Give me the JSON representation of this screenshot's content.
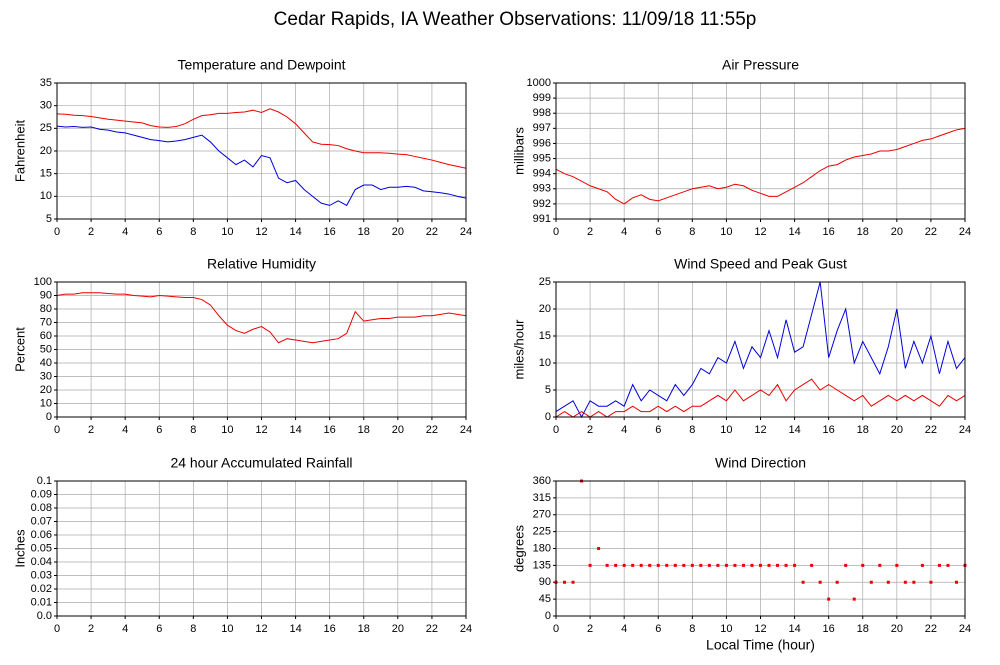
{
  "title": "Cedar Rapids, IA Weather Observations: 11/09/18 11:55p",
  "chart_data": [
    {
      "type": "line",
      "title": "Temperature and Dewpoint",
      "ylabel": "Fahrenheit",
      "grid": true,
      "xlim": [
        0,
        24
      ],
      "xticks": [
        0,
        2,
        4,
        6,
        8,
        10,
        12,
        14,
        16,
        18,
        20,
        22,
        24
      ],
      "ylim": [
        5,
        35
      ],
      "yticks": [
        5,
        10,
        15,
        20,
        25,
        30,
        35
      ],
      "x": [
        0,
        0.5,
        1,
        1.5,
        2,
        2.5,
        3,
        3.5,
        4,
        4.5,
        5,
        5.5,
        6,
        6.5,
        7,
        7.5,
        8,
        8.5,
        9,
        9.5,
        10,
        10.5,
        11,
        11.5,
        12,
        12.5,
        13,
        13.5,
        14,
        14.5,
        15,
        15.5,
        16,
        16.5,
        17,
        17.5,
        18,
        18.5,
        19,
        19.5,
        20,
        20.5,
        21,
        21.5,
        22,
        22.5,
        23,
        23.5,
        24
      ],
      "series": [
        {
          "color": "#ee0000",
          "values": [
            28.2,
            28.1,
            27.9,
            27.8,
            27.6,
            27.3,
            27.0,
            26.8,
            26.6,
            26.4,
            26.2,
            25.6,
            25.3,
            25.2,
            25.4,
            26.0,
            27.0,
            27.8,
            28.0,
            28.3,
            28.3,
            28.5,
            28.6,
            29.0,
            28.5,
            29.3,
            28.6,
            27.5,
            26.0,
            24.0,
            22.0,
            21.5,
            21.4,
            21.2,
            20.5,
            20.0,
            19.6,
            19.6,
            19.6,
            19.5,
            19.3,
            19.2,
            18.8,
            18.4,
            18.0,
            17.5,
            17.0,
            16.6,
            16.2
          ]
        },
        {
          "color": "#0000dd",
          "values": [
            25.5,
            25.3,
            25.4,
            25.2,
            25.3,
            24.8,
            24.6,
            24.2,
            24.0,
            23.5,
            23.0,
            22.5,
            22.3,
            22.0,
            22.2,
            22.5,
            23.0,
            23.5,
            22.0,
            20.0,
            18.5,
            17.0,
            18.0,
            16.5,
            19.0,
            18.5,
            14.0,
            13.0,
            13.5,
            11.5,
            10.0,
            8.5,
            8.0,
            9.0,
            8.0,
            11.5,
            12.5,
            12.5,
            11.5,
            12.0,
            12.0,
            12.2,
            12.0,
            11.2,
            11.0,
            10.8,
            10.5,
            10.0,
            9.6
          ]
        }
      ]
    },
    {
      "type": "line",
      "title": "Air Pressure",
      "ylabel": "millibars",
      "grid": true,
      "xlim": [
        0,
        24
      ],
      "xticks": [
        0,
        2,
        4,
        6,
        8,
        10,
        12,
        14,
        16,
        18,
        20,
        22,
        24
      ],
      "ylim": [
        991,
        1000
      ],
      "yticks": [
        991,
        992,
        993,
        994,
        995,
        996,
        997,
        998,
        999,
        1000
      ],
      "x": [
        0,
        0.5,
        1,
        1.5,
        2,
        2.5,
        3,
        3.5,
        4,
        4.5,
        5,
        5.5,
        6,
        6.5,
        7,
        7.5,
        8,
        8.5,
        9,
        9.5,
        10,
        10.5,
        11,
        11.5,
        12,
        12.5,
        13,
        13.5,
        14,
        14.5,
        15,
        15.5,
        16,
        16.5,
        17,
        17.5,
        18,
        18.5,
        19,
        19.5,
        20,
        20.5,
        21,
        21.5,
        22,
        22.5,
        23,
        23.5,
        24
      ],
      "series": [
        {
          "color": "#ee0000",
          "values": [
            994.3,
            994.0,
            993.8,
            993.5,
            993.2,
            993.0,
            992.8,
            992.3,
            992.0,
            992.4,
            992.6,
            992.3,
            992.2,
            992.4,
            992.6,
            992.8,
            993.0,
            993.1,
            993.2,
            993.0,
            993.1,
            993.3,
            993.2,
            992.9,
            992.7,
            992.5,
            992.5,
            992.8,
            993.1,
            993.4,
            993.8,
            994.2,
            994.5,
            994.6,
            994.9,
            995.1,
            995.2,
            995.3,
            995.5,
            995.5,
            995.6,
            995.8,
            996.0,
            996.2,
            996.3,
            996.5,
            996.7,
            996.9,
            997.0
          ]
        }
      ]
    },
    {
      "type": "line",
      "title": "Relative Humidity",
      "ylabel": "Percent",
      "grid": true,
      "xlim": [
        0,
        24
      ],
      "xticks": [
        0,
        2,
        4,
        6,
        8,
        10,
        12,
        14,
        16,
        18,
        20,
        22,
        24
      ],
      "ylim": [
        0,
        100
      ],
      "yticks": [
        0,
        10,
        20,
        30,
        40,
        50,
        60,
        70,
        80,
        90,
        100
      ],
      "x": [
        0,
        0.5,
        1,
        1.5,
        2,
        2.5,
        3,
        3.5,
        4,
        4.5,
        5,
        5.5,
        6,
        6.5,
        7,
        7.5,
        8,
        8.5,
        9,
        9.5,
        10,
        10.5,
        11,
        11.5,
        12,
        12.5,
        13,
        13.5,
        14,
        14.5,
        15,
        15.5,
        16,
        16.5,
        17,
        17.5,
        18,
        18.5,
        19,
        19.5,
        20,
        20.5,
        21,
        21.5,
        22,
        22.5,
        23,
        23.5,
        24
      ],
      "series": [
        {
          "color": "#ee0000",
          "values": [
            90,
            91,
            91,
            92,
            92,
            92,
            91.5,
            91,
            91,
            90,
            89.5,
            89,
            90,
            89.5,
            89,
            88.5,
            88.5,
            87,
            83,
            75,
            68,
            64,
            62,
            65,
            67,
            63,
            55,
            58,
            57,
            56,
            55,
            56,
            57,
            58,
            62,
            78,
            71,
            72,
            73,
            73,
            74,
            74,
            74,
            75,
            75,
            76,
            77,
            76,
            75
          ]
        }
      ]
    },
    {
      "type": "line",
      "title": "Wind Speed and Peak Gust",
      "ylabel": "miles/hour",
      "grid": true,
      "xlim": [
        0,
        24
      ],
      "xticks": [
        0,
        2,
        4,
        6,
        8,
        10,
        12,
        14,
        16,
        18,
        20,
        22,
        24
      ],
      "ylim": [
        0,
        25
      ],
      "yticks": [
        0,
        5,
        10,
        15,
        20,
        25
      ],
      "x": [
        0,
        0.5,
        1,
        1.5,
        2,
        2.5,
        3,
        3.5,
        4,
        4.5,
        5,
        5.5,
        6,
        6.5,
        7,
        7.5,
        8,
        8.5,
        9,
        9.5,
        10,
        10.5,
        11,
        11.5,
        12,
        12.5,
        13,
        13.5,
        14,
        14.5,
        15,
        15.5,
        16,
        16.5,
        17,
        17.5,
        18,
        18.5,
        19,
        19.5,
        20,
        20.5,
        21,
        21.5,
        22,
        22.5,
        23,
        23.5,
        24
      ],
      "series": [
        {
          "color": "#0000dd",
          "values": [
            1,
            2,
            3,
            0,
            3,
            2,
            2,
            3,
            2,
            6,
            3,
            5,
            4,
            3,
            6,
            4,
            6,
            9,
            8,
            11,
            10,
            14,
            9,
            13,
            11,
            16,
            11,
            18,
            12,
            13,
            19,
            25,
            11,
            16,
            20,
            10,
            14,
            11,
            8,
            13,
            20,
            9,
            14,
            10,
            15,
            8,
            14,
            9,
            11
          ]
        },
        {
          "color": "#ee0000",
          "values": [
            0,
            1,
            0,
            1,
            0,
            1,
            0,
            1,
            1,
            2,
            1,
            1,
            2,
            1,
            2,
            1,
            2,
            2,
            3,
            4,
            3,
            5,
            3,
            4,
            5,
            4,
            6,
            3,
            5,
            6,
            7,
            5,
            6,
            5,
            4,
            3,
            4,
            2,
            3,
            4,
            3,
            4,
            3,
            4,
            3,
            2,
            4,
            3,
            4
          ]
        }
      ]
    },
    {
      "type": "line",
      "title": "24 hour Accumulated Rainfall",
      "ylabel": "Inches",
      "grid": true,
      "xlim": [
        0,
        24
      ],
      "xticks": [
        0,
        2,
        4,
        6,
        8,
        10,
        12,
        14,
        16,
        18,
        20,
        22,
        24
      ],
      "ylim": [
        0,
        0.1
      ],
      "yticks": [
        {
          "value": 0,
          "label": "0.0"
        },
        0.01,
        0.02,
        0.03,
        0.04,
        0.05,
        0.06,
        0.07,
        0.08,
        0.09,
        0.1
      ],
      "x": [
        0,
        24
      ],
      "series": [
        {
          "color": "#ee3366",
          "values": [
            0,
            0
          ]
        }
      ]
    },
    {
      "type": "scatter",
      "title": "Wind Direction",
      "ylabel": "degrees",
      "xlabel": "Local Time (hour)",
      "grid": true,
      "xlim": [
        0,
        24
      ],
      "xticks": [
        0,
        2,
        4,
        6,
        8,
        10,
        12,
        14,
        16,
        18,
        20,
        22,
        24
      ],
      "ylim": [
        0,
        360
      ],
      "yticks": [
        0,
        45,
        90,
        135,
        180,
        225,
        270,
        315,
        360
      ],
      "x": [
        0,
        0.5,
        1,
        1.5,
        2,
        2.5,
        3,
        3.5,
        4,
        4.5,
        5,
        5.5,
        6,
        6.5,
        7,
        7.5,
        8,
        8.5,
        9,
        9.5,
        10,
        10.5,
        11,
        11.5,
        12,
        12.5,
        13,
        13.5,
        14,
        14.5,
        15,
        15.5,
        16,
        16.5,
        17,
        17.5,
        18,
        18.5,
        19,
        19.5,
        20,
        20.5,
        21,
        21.5,
        22,
        22.5,
        23,
        23.5,
        24
      ],
      "series": [
        {
          "color": "#ee0000",
          "values": [
            90,
            90,
            90,
            360,
            135,
            180,
            135,
            135,
            135,
            135,
            135,
            135,
            135,
            135,
            135,
            135,
            135,
            135,
            135,
            135,
            135,
            135,
            135,
            135,
            135,
            135,
            135,
            135,
            135,
            90,
            135,
            90,
            45,
            90,
            135,
            45,
            135,
            90,
            135,
            90,
            135,
            90,
            90,
            135,
            90,
            135,
            135,
            90,
            135
          ]
        }
      ]
    }
  ]
}
